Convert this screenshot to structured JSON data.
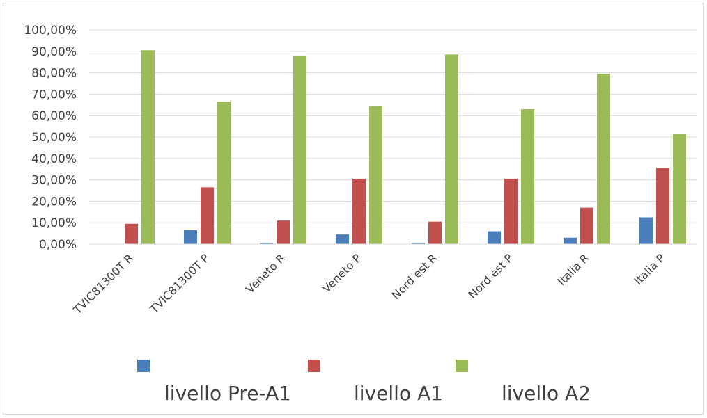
{
  "chart_data": {
    "type": "bar",
    "categories": [
      "TVIC81300T R",
      "TVIC81300T P",
      "Veneto R",
      "Veneto P",
      "Nord est R",
      "Nord est P",
      "Italia R",
      "Italia P"
    ],
    "series": [
      {
        "name": "livello Pre-A1",
        "color": "#4a7ebb",
        "values": [
          0.0,
          6.5,
          0.5,
          4.5,
          0.5,
          6.0,
          3.0,
          12.5
        ]
      },
      {
        "name": "livello A1",
        "color": "#c0504d",
        "values": [
          9.5,
          26.5,
          11.0,
          30.5,
          10.5,
          30.5,
          17.0,
          35.5
        ]
      },
      {
        "name": "livello A2",
        "color": "#9bbb59",
        "values": [
          90.5,
          66.5,
          88.0,
          64.5,
          88.5,
          63.0,
          79.5,
          51.5
        ]
      }
    ],
    "ylim": [
      0,
      100
    ],
    "yticks": [
      0,
      10,
      20,
      30,
      40,
      50,
      60,
      70,
      80,
      90,
      100
    ],
    "ytick_labels": [
      "0,00%",
      "10,00%",
      "20,00%",
      "30,00%",
      "40,00%",
      "50,00%",
      "60,00%",
      "70,00%",
      "80,00%",
      "90,00%",
      "100,00%"
    ],
    "grid": true,
    "legend_position": "bottom",
    "title": "",
    "xlabel": "",
    "ylabel": ""
  }
}
